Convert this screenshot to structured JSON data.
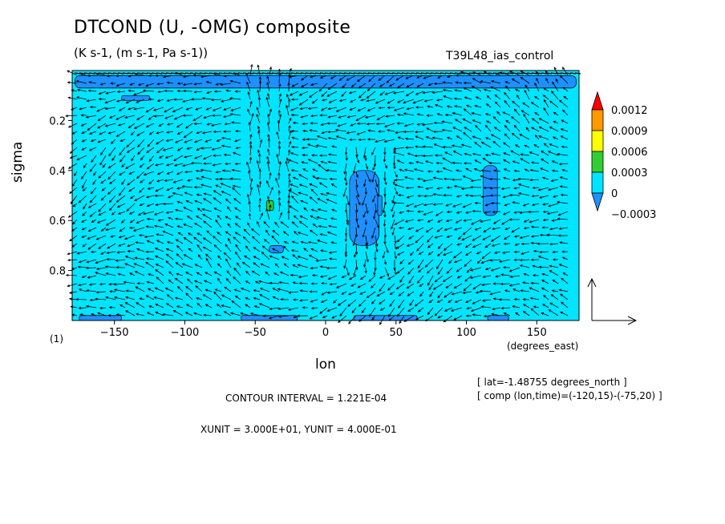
{
  "title": "DTCOND (U, -OMG) composite",
  "subtitle": "(K s-1, (m s-1, Pa s-1))",
  "run_name": "T39L48_ias_control",
  "panel_label": "(1)",
  "lat_note": "[ lat=-1.48755 degrees_north ]",
  "comp_note": "[ comp (lon,time)=(-120,15)-(-75,20) ]",
  "contour_interval": "CONTOUR INTERVAL = 1.221E-04",
  "xy_unit": "XUNIT = 3.000E+01, YUNIT = 4.000E-01",
  "colors": {
    "background_fill": "#00e5ff",
    "negative_fill": "#1e90ff",
    "positive_fill": "#32cd32",
    "frame": "#000000"
  },
  "chart_data": {
    "type": "heatmap",
    "title": "DTCOND (U, -OMG) composite",
    "subtitle": "(K s-1, (m s-1, Pa s-1))",
    "xlabel": "lon",
    "xlabel_units": "(degrees_east)",
    "ylabel": "sigma",
    "xlim": [
      -180,
      180
    ],
    "ylim": [
      1.0,
      0.0
    ],
    "xticks": [
      -150,
      -100,
      -50,
      0,
      50,
      100,
      150
    ],
    "yticks": [
      0.2,
      0.4,
      0.6,
      0.8
    ],
    "grid": false,
    "overlay": "vector arrows (U, -OMG)",
    "colorbar": {
      "placement": "right",
      "labels": [
        "0.0012",
        "0.0009",
        "0.0006",
        "0.0003",
        "0",
        "-0.0003"
      ],
      "levels": [
        0.0012,
        0.0009,
        0.0006,
        0.0003,
        0,
        -0.0003
      ],
      "colors": [
        "#ff0000",
        "#ff9900",
        "#ffff00",
        "#32cd32",
        "#00e5ff",
        "#1e90ff"
      ]
    },
    "negative_regions": [
      {
        "lon": [
          -178,
          178
        ],
        "sigma": [
          0.02,
          0.07
        ]
      },
      {
        "lon": [
          -145,
          -125
        ],
        "sigma": [
          0.1,
          0.12
        ]
      },
      {
        "lon": [
          17,
          38
        ],
        "sigma": [
          0.4,
          0.7
        ]
      },
      {
        "lon": [
          37,
          40
        ],
        "sigma": [
          0.5,
          0.58
        ]
      },
      {
        "lon": [
          112,
          122
        ],
        "sigma": [
          0.38,
          0.58
        ]
      },
      {
        "lon": [
          -40,
          -30
        ],
        "sigma": [
          0.7,
          0.73
        ]
      },
      {
        "lon": [
          -175,
          -145
        ],
        "sigma": [
          0.98,
          1.0
        ]
      },
      {
        "lon": [
          -60,
          -20
        ],
        "sigma": [
          0.98,
          1.0
        ]
      },
      {
        "lon": [
          20,
          65
        ],
        "sigma": [
          0.98,
          1.0
        ]
      },
      {
        "lon": [
          115,
          130
        ],
        "sigma": [
          0.98,
          1.0
        ]
      }
    ],
    "positive_regions": [
      {
        "lon": [
          -42,
          -37
        ],
        "sigma": [
          0.52,
          0.56
        ]
      }
    ]
  }
}
